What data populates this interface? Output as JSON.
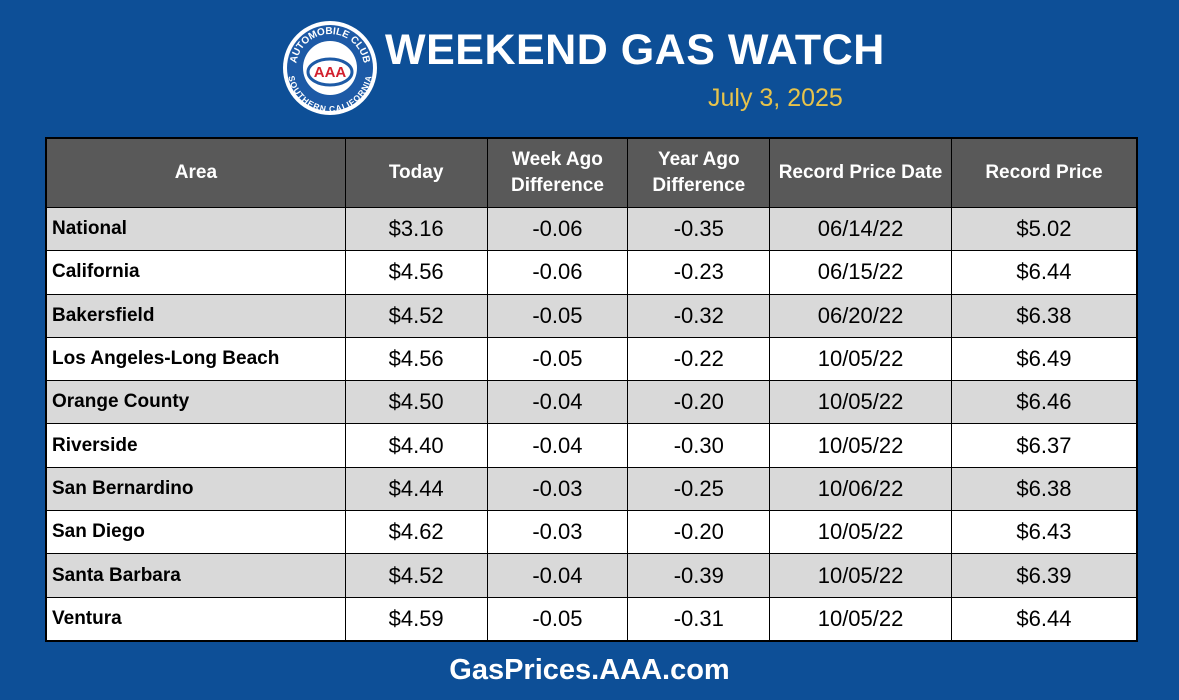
{
  "header": {
    "title": "WEEKEND GAS WATCH",
    "date": "July 3, 2025",
    "logo": {
      "top": "AUTOMOBILE CLUB",
      "bottom": "SOUTHERN CALIFORNIA",
      "center": "AAA"
    }
  },
  "table": {
    "columns": [
      "Area",
      "Today",
      "Week Ago Difference",
      "Year Ago Difference",
      "Record Price Date",
      "Record Price"
    ],
    "rows": [
      [
        "National",
        "$3.16",
        "-0.06",
        "-0.35",
        "06/14/22",
        "$5.02"
      ],
      [
        "California",
        "$4.56",
        "-0.06",
        "-0.23",
        "06/15/22",
        "$6.44"
      ],
      [
        "Bakersfield",
        "$4.52",
        "-0.05",
        "-0.32",
        "06/20/22",
        "$6.38"
      ],
      [
        "Los Angeles-Long Beach",
        "$4.56",
        "-0.05",
        "-0.22",
        "10/05/22",
        "$6.49"
      ],
      [
        "Orange County",
        "$4.50",
        "-0.04",
        "-0.20",
        "10/05/22",
        "$6.46"
      ],
      [
        "Riverside",
        "$4.40",
        "-0.04",
        "-0.30",
        "10/05/22",
        "$6.37"
      ],
      [
        "San Bernardino",
        "$4.44",
        "-0.03",
        "-0.25",
        "10/06/22",
        "$6.38"
      ],
      [
        "San Diego",
        "$4.62",
        "-0.03",
        "-0.20",
        "10/05/22",
        "$6.43"
      ],
      [
        "Santa Barbara",
        "$4.52",
        "-0.04",
        "-0.39",
        "10/05/22",
        "$6.39"
      ],
      [
        "Ventura",
        "$4.59",
        "-0.05",
        "-0.31",
        "10/05/22",
        "$6.44"
      ]
    ]
  },
  "footer": {
    "url": "GasPrices.AAA.com"
  }
}
